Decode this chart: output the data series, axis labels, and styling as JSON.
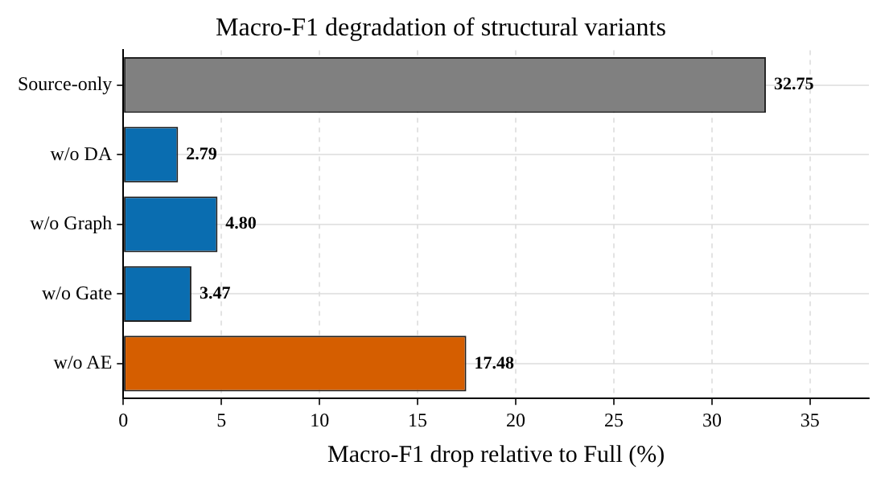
{
  "chart_data": {
    "type": "bar",
    "orientation": "horizontal",
    "title": "Macro-F1 degradation of structural variants",
    "xlabel": "Macro-F1 drop relative to Full (%)",
    "categories": [
      "Source-only",
      "w/o DA",
      "w/o Graph",
      "w/o Gate",
      "w/o AE"
    ],
    "values": [
      32.75,
      2.79,
      4.8,
      3.47,
      17.48
    ],
    "value_labels": [
      "32.75",
      "2.79",
      "4.80",
      "3.47",
      "17.48"
    ],
    "colors": [
      "#808080",
      "#0a6db0",
      "#0a6db0",
      "#0a6db0",
      "#d55e00"
    ],
    "xlim": [
      0,
      38
    ],
    "xticks": [
      0,
      5,
      10,
      15,
      20,
      25,
      30,
      35
    ],
    "grid": true,
    "legend": false
  }
}
